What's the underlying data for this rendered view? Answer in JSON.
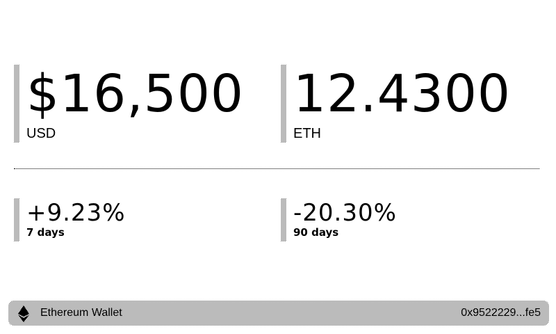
{
  "balance_fiat": {
    "value": "$16,500",
    "unit": "USD"
  },
  "balance_crypto": {
    "value": "12.4300",
    "unit": "ETH"
  },
  "change_short": {
    "value": "+9.23%",
    "period": "7 days"
  },
  "change_long": {
    "value": "-20.30%",
    "period": "90 days"
  },
  "footer": {
    "icon": "ethereum-icon",
    "wallet_name": "Ethereum Wallet",
    "address": "0x9522229...fe5"
  }
}
